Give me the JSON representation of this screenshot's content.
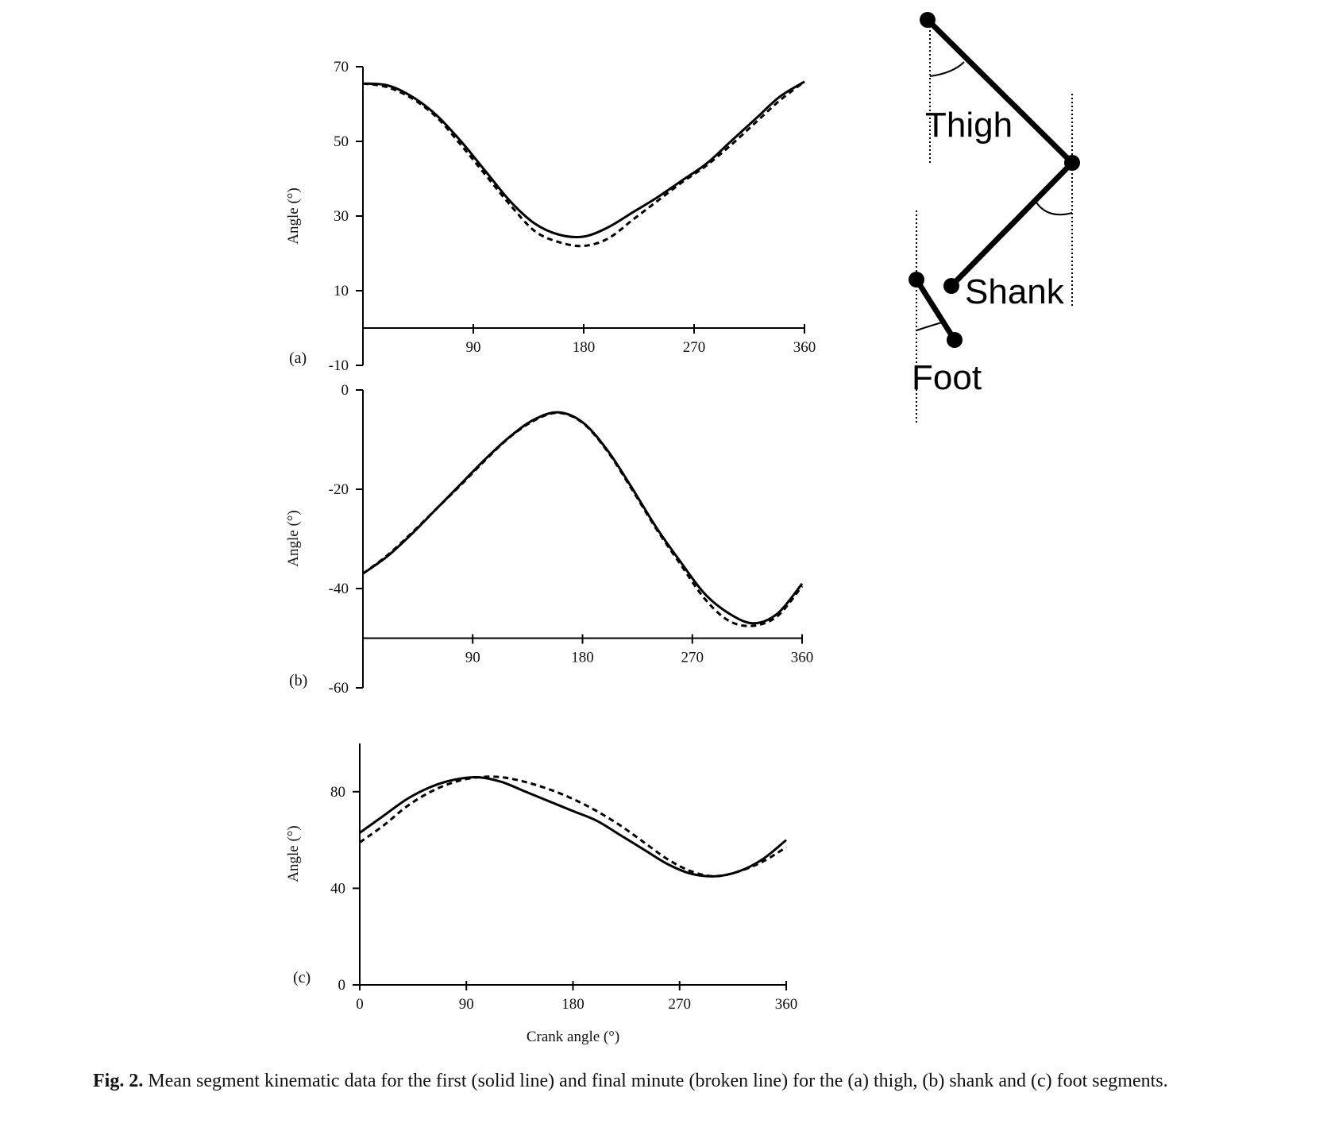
{
  "caption": {
    "label": "Fig. 2.",
    "text": "Mean segment kinematic data for the first (solid line) and final minute (broken line) for the (a) thigh, (b) shank and (c) foot segments."
  },
  "diagram": {
    "labels": {
      "thigh": "Thigh",
      "shank": "Shank",
      "foot": "Foot"
    }
  },
  "chart_data": [
    {
      "type": "line",
      "panel_label": "(a)",
      "ylabel": "Angle (°)",
      "xlabel": "",
      "xlim": [
        0,
        360
      ],
      "ylim": [
        -10,
        70
      ],
      "x_axis_at": 0,
      "xticks": [
        90,
        180,
        270,
        360
      ],
      "yticks": [
        -10,
        10,
        30,
        50,
        70
      ],
      "x": [
        0,
        20,
        40,
        60,
        80,
        100,
        120,
        140,
        160,
        180,
        200,
        220,
        240,
        260,
        280,
        300,
        320,
        340,
        360
      ],
      "series": [
        {
          "style": "solid",
          "values": [
            65.5,
            65,
            62,
            57,
            50,
            42,
            34,
            28,
            25,
            24.5,
            27,
            31,
            35,
            39.5,
            44,
            50,
            56,
            62,
            66
          ]
        },
        {
          "style": "dashed",
          "values": [
            65.5,
            64.5,
            61.5,
            56.5,
            49,
            41,
            33,
            26,
            23,
            22,
            24,
            29,
            34,
            39,
            43.5,
            49,
            55,
            61,
            66
          ]
        }
      ]
    },
    {
      "type": "line",
      "panel_label": "(b)",
      "ylabel": "Angle (°)",
      "xlabel": "",
      "xlim": [
        0,
        360
      ],
      "ylim": [
        -60,
        0
      ],
      "x_axis_at": -50,
      "xticks": [
        90,
        180,
        270,
        360
      ],
      "yticks": [
        -60,
        -40,
        -20,
        0
      ],
      "x": [
        0,
        20,
        40,
        60,
        80,
        100,
        120,
        140,
        160,
        180,
        200,
        220,
        240,
        260,
        280,
        300,
        320,
        340,
        360
      ],
      "series": [
        {
          "style": "solid",
          "values": [
            -37,
            -33.5,
            -29,
            -24,
            -19,
            -14,
            -9.5,
            -6,
            -4.5,
            -6.5,
            -12,
            -19.5,
            -27.5,
            -34.5,
            -41,
            -45,
            -47,
            -45,
            -39
          ]
        },
        {
          "style": "dashed",
          "values": [
            -37,
            -33.3,
            -28.8,
            -24,
            -19.2,
            -14.2,
            -9.6,
            -6.2,
            -4.6,
            -6.6,
            -12.2,
            -19.8,
            -27.8,
            -35,
            -42,
            -46.5,
            -47.5,
            -45.5,
            -39.5
          ]
        }
      ]
    },
    {
      "type": "line",
      "panel_label": "(c)",
      "ylabel": "Angle (°)",
      "xlabel": "Crank angle (°)",
      "xlim": [
        0,
        360
      ],
      "ylim": [
        0,
        100
      ],
      "x_axis_at": 0,
      "xticks": [
        0,
        90,
        180,
        270,
        360
      ],
      "yticks": [
        0,
        40,
        80
      ],
      "x": [
        0,
        20,
        40,
        60,
        80,
        100,
        120,
        140,
        160,
        180,
        200,
        220,
        240,
        260,
        280,
        300,
        320,
        340,
        360
      ],
      "series": [
        {
          "style": "solid",
          "values": [
            63,
            70,
            77,
            82,
            85,
            86,
            84,
            80,
            76,
            72,
            68,
            62,
            56,
            50,
            46,
            45,
            47,
            52,
            60
          ]
        },
        {
          "style": "dashed",
          "values": [
            59,
            66,
            74,
            80,
            84,
            86,
            86,
            84,
            81,
            77,
            72,
            66,
            59,
            52,
            47,
            45,
            47,
            51,
            57
          ]
        }
      ]
    }
  ]
}
